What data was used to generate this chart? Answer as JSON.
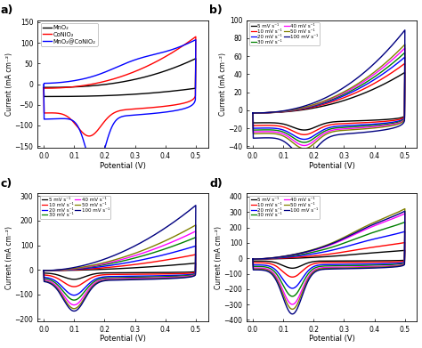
{
  "fig_width": 4.74,
  "fig_height": 3.91,
  "dpi": 100,
  "background": "#ffffff",
  "panel_a": {
    "label": "a)",
    "xlabel": "Potential (V)",
    "ylabel": "Current (mA cm⁻²)",
    "xlim": [
      -0.02,
      0.54
    ],
    "ylim": [
      -155,
      155
    ],
    "yticks": [
      -150,
      -100,
      -50,
      0,
      50,
      100,
      150
    ],
    "xticks": [
      0.0,
      0.1,
      0.2,
      0.3,
      0.4,
      0.5
    ],
    "legend": [
      "MnO₂",
      "CoNiO₂",
      "MnO₂@CoNiO₂"
    ],
    "colors": [
      "black",
      "red",
      "blue"
    ]
  },
  "panel_b": {
    "label": "b)",
    "xlabel": "Potential (V)",
    "ylabel": "Current (mA cm⁻²)",
    "xlim": [
      -0.02,
      0.54
    ],
    "ylim": [
      -42,
      100
    ],
    "yticks": [
      -40,
      -20,
      0,
      20,
      40,
      60,
      80,
      100
    ],
    "xticks": [
      0.0,
      0.1,
      0.2,
      0.3,
      0.4,
      0.5
    ],
    "legend": [
      "5 mV s⁻¹",
      "10 mV s⁻¹",
      "20 mV s⁻¹",
      "30 mV s⁻¹",
      "40 mV s⁻¹",
      "50 mV s⁻¹",
      "100 mV s⁻¹"
    ],
    "colors": [
      "black",
      "red",
      "blue",
      "green",
      "magenta",
      "olive",
      "navy"
    ]
  },
  "panel_c": {
    "label": "c)",
    "xlabel": "Potential (V)",
    "ylabel": "Current (mA cm⁻²)",
    "xlim": [
      -0.02,
      0.54
    ],
    "ylim": [
      -210,
      310
    ],
    "yticks": [
      -200,
      -100,
      0,
      100,
      200,
      300
    ],
    "xticks": [
      0.0,
      0.1,
      0.2,
      0.3,
      0.4,
      0.5
    ],
    "legend": [
      "5 mV s⁻¹",
      "10 mV s⁻¹",
      "20 mV s⁻¹",
      "30 mV s⁻¹",
      "40 mV s⁻¹",
      "50 mV s⁻¹",
      "100 mV s⁻¹"
    ],
    "colors": [
      "black",
      "red",
      "blue",
      "green",
      "magenta",
      "olive",
      "navy"
    ]
  },
  "panel_d": {
    "label": "d)",
    "xlabel": "Potential (V)",
    "ylabel": "Current (mA cm⁻²)",
    "xlim": [
      -0.02,
      0.54
    ],
    "ylim": [
      -410,
      420
    ],
    "yticks": [
      -400,
      -300,
      -200,
      -100,
      0,
      100,
      200,
      300,
      400
    ],
    "xticks": [
      0.0,
      0.1,
      0.2,
      0.3,
      0.4,
      0.5
    ],
    "legend": [
      "5 mV s⁻¹",
      "10 mV s⁻¹",
      "20 mV s⁻¹",
      "30 mV s⁻¹",
      "40 mV s⁻¹",
      "50 mV s⁻¹",
      "100 mV s⁻¹"
    ],
    "colors": [
      "black",
      "red",
      "blue",
      "green",
      "magenta",
      "olive",
      "navy"
    ]
  }
}
